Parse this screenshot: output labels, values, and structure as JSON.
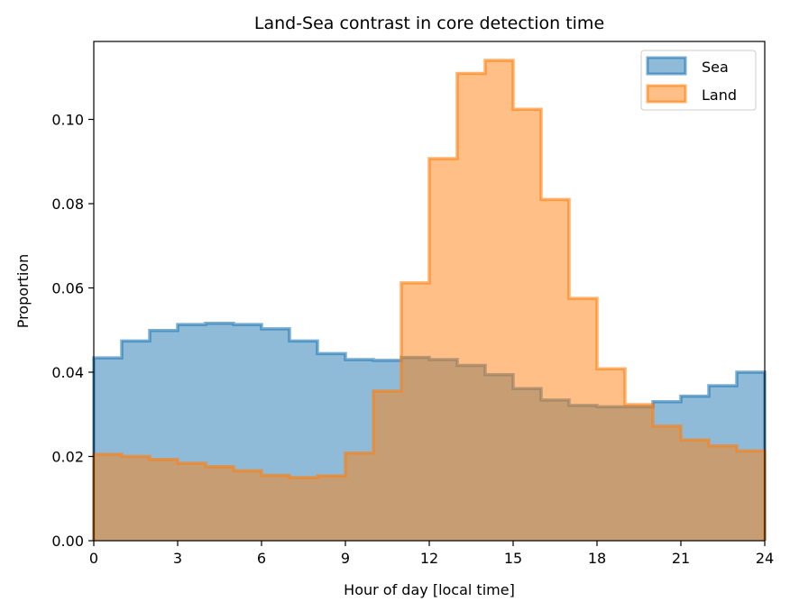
{
  "chart_data": {
    "type": "histogram",
    "title": "Land-Sea contrast in core detection time",
    "xlabel": "Hour of day [local time]",
    "ylabel": "Proportion",
    "xlim": [
      0,
      24
    ],
    "ylim": [
      0,
      0.1185
    ],
    "xticks": [
      0,
      3,
      6,
      9,
      12,
      15,
      18,
      21,
      24
    ],
    "yticks": [
      0.0,
      0.02,
      0.04,
      0.06,
      0.08,
      0.1
    ],
    "ytick_labels": [
      "0.00",
      "0.02",
      "0.04",
      "0.06",
      "0.08",
      "0.10"
    ],
    "bin_edges": [
      0,
      1,
      2,
      3,
      4,
      5,
      6,
      7,
      8,
      9,
      10,
      11,
      12,
      13,
      14,
      15,
      16,
      17,
      18,
      19,
      20,
      21,
      22,
      23,
      24
    ],
    "legend_position": "top-right",
    "series": [
      {
        "name": "Sea",
        "color": "#1f77b4",
        "values": [
          0.0434,
          0.0474,
          0.0499,
          0.0513,
          0.0516,
          0.0513,
          0.0503,
          0.0474,
          0.0444,
          0.043,
          0.0428,
          0.0435,
          0.043,
          0.0416,
          0.0394,
          0.0361,
          0.0334,
          0.0321,
          0.0318,
          0.0318,
          0.033,
          0.0343,
          0.0368,
          0.04
        ]
      },
      {
        "name": "Land",
        "color": "#ff7f0e",
        "values": [
          0.0205,
          0.02,
          0.0193,
          0.0184,
          0.0176,
          0.0166,
          0.0155,
          0.015,
          0.0154,
          0.0208,
          0.0355,
          0.0612,
          0.0907,
          0.1109,
          0.114,
          0.1024,
          0.081,
          0.0575,
          0.0408,
          0.0323,
          0.0272,
          0.0239,
          0.0225,
          0.0213
        ]
      }
    ]
  }
}
